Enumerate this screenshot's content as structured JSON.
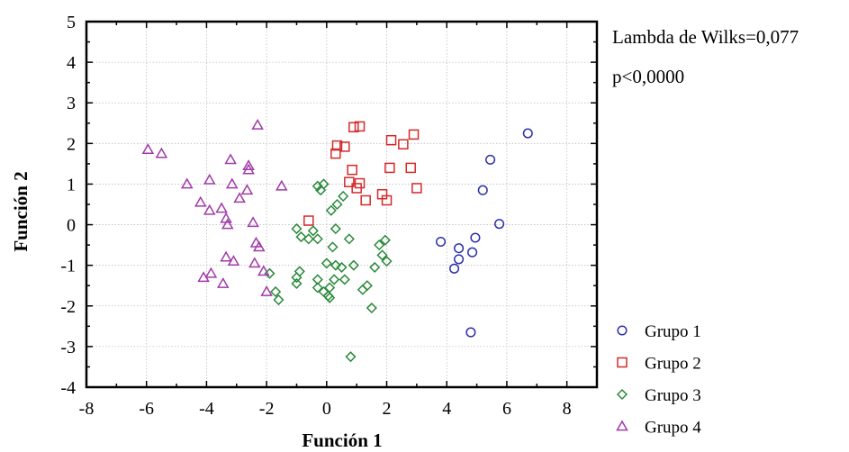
{
  "chart_data": {
    "type": "scatter",
    "xlabel": "Función 1",
    "ylabel": "Función 2",
    "xlim": [
      -8,
      9
    ],
    "ylim": [
      -4,
      5
    ],
    "xticks": [
      -8,
      -6,
      -4,
      -2,
      0,
      2,
      4,
      6,
      8
    ],
    "yticks": [
      -4,
      -3,
      -2,
      -1,
      0,
      1,
      2,
      3,
      4,
      5
    ],
    "grid": true,
    "legend_position": "bottom-right",
    "annotations": [
      "Lambda de Wilks=0,077",
      "p<0,0000"
    ],
    "series": [
      {
        "name": "Grupo 1",
        "marker": "circle",
        "color": "#2b2fa8",
        "points": [
          [
            6.7,
            2.25
          ],
          [
            5.45,
            1.6
          ],
          [
            5.2,
            0.85
          ],
          [
            5.75,
            0.02
          ],
          [
            3.8,
            -0.42
          ],
          [
            4.95,
            -0.32
          ],
          [
            4.4,
            -0.58
          ],
          [
            4.4,
            -0.85
          ],
          [
            4.85,
            -0.68
          ],
          [
            4.25,
            -1.08
          ],
          [
            4.8,
            -2.65
          ]
        ]
      },
      {
        "name": "Grupo 2",
        "marker": "square",
        "color": "#d42a2a",
        "points": [
          [
            0.9,
            2.4
          ],
          [
            1.1,
            2.42
          ],
          [
            2.9,
            2.22
          ],
          [
            2.15,
            2.08
          ],
          [
            2.55,
            1.98
          ],
          [
            0.35,
            1.95
          ],
          [
            0.6,
            1.92
          ],
          [
            0.3,
            1.75
          ],
          [
            0.85,
            1.35
          ],
          [
            2.1,
            1.4
          ],
          [
            2.8,
            1.4
          ],
          [
            0.75,
            1.05
          ],
          [
            1.1,
            1.02
          ],
          [
            1.0,
            0.9
          ],
          [
            3.0,
            0.9
          ],
          [
            1.3,
            0.6
          ],
          [
            1.85,
            0.75
          ],
          [
            2.0,
            0.6
          ],
          [
            -0.6,
            0.1
          ]
        ]
      },
      {
        "name": "Grupo 3",
        "marker": "diamond",
        "color": "#2a8a3a",
        "points": [
          [
            -0.3,
            0.95
          ],
          [
            -0.1,
            1.0
          ],
          [
            -0.2,
            0.85
          ],
          [
            0.55,
            0.7
          ],
          [
            0.35,
            0.5
          ],
          [
            0.15,
            0.35
          ],
          [
            -1.0,
            -0.1
          ],
          [
            -0.45,
            -0.15
          ],
          [
            0.3,
            -0.1
          ],
          [
            -0.85,
            -0.3
          ],
          [
            -0.6,
            -0.35
          ],
          [
            -0.3,
            -0.35
          ],
          [
            0.75,
            -0.35
          ],
          [
            1.95,
            -0.38
          ],
          [
            1.75,
            -0.5
          ],
          [
            0.2,
            -0.55
          ],
          [
            1.85,
            -0.75
          ],
          [
            2.0,
            -0.9
          ],
          [
            0.0,
            -0.95
          ],
          [
            0.3,
            -1.0
          ],
          [
            0.9,
            -1.0
          ],
          [
            0.5,
            -1.05
          ],
          [
            1.6,
            -1.05
          ],
          [
            -1.9,
            -1.2
          ],
          [
            -0.9,
            -1.15
          ],
          [
            -1.0,
            -1.3
          ],
          [
            0.25,
            -1.35
          ],
          [
            -0.3,
            -1.35
          ],
          [
            0.6,
            -1.35
          ],
          [
            1.35,
            -1.5
          ],
          [
            -1.0,
            -1.45
          ],
          [
            -0.3,
            -1.55
          ],
          [
            0.1,
            -1.55
          ],
          [
            1.2,
            -1.6
          ],
          [
            -1.7,
            -1.65
          ],
          [
            -1.6,
            -1.85
          ],
          [
            0.05,
            -1.75
          ],
          [
            -0.1,
            -1.65
          ],
          [
            0.1,
            -1.8
          ],
          [
            1.5,
            -2.05
          ],
          [
            0.8,
            -3.25
          ]
        ]
      },
      {
        "name": "Grupo 4",
        "marker": "triangle",
        "color": "#a03aa8",
        "points": [
          [
            -5.95,
            1.85
          ],
          [
            -5.5,
            1.75
          ],
          [
            -2.3,
            2.45
          ],
          [
            -2.6,
            1.45
          ],
          [
            -3.2,
            1.6
          ],
          [
            -2.6,
            1.35
          ],
          [
            -3.9,
            1.1
          ],
          [
            -4.65,
            1.0
          ],
          [
            -3.15,
            1.0
          ],
          [
            -2.65,
            0.85
          ],
          [
            -1.5,
            0.95
          ],
          [
            -4.2,
            0.55
          ],
          [
            -3.5,
            0.4
          ],
          [
            -2.9,
            0.65
          ],
          [
            -3.9,
            0.35
          ],
          [
            -3.35,
            0.15
          ],
          [
            -2.45,
            0.05
          ],
          [
            -3.3,
            0.0
          ],
          [
            -2.35,
            -0.45
          ],
          [
            -2.25,
            -0.55
          ],
          [
            -3.35,
            -0.8
          ],
          [
            -3.1,
            -0.9
          ],
          [
            -2.4,
            -0.95
          ],
          [
            -3.85,
            -1.2
          ],
          [
            -4.1,
            -1.3
          ],
          [
            -2.1,
            -1.15
          ],
          [
            -3.45,
            -1.45
          ],
          [
            -2.0,
            -1.65
          ]
        ]
      }
    ]
  }
}
